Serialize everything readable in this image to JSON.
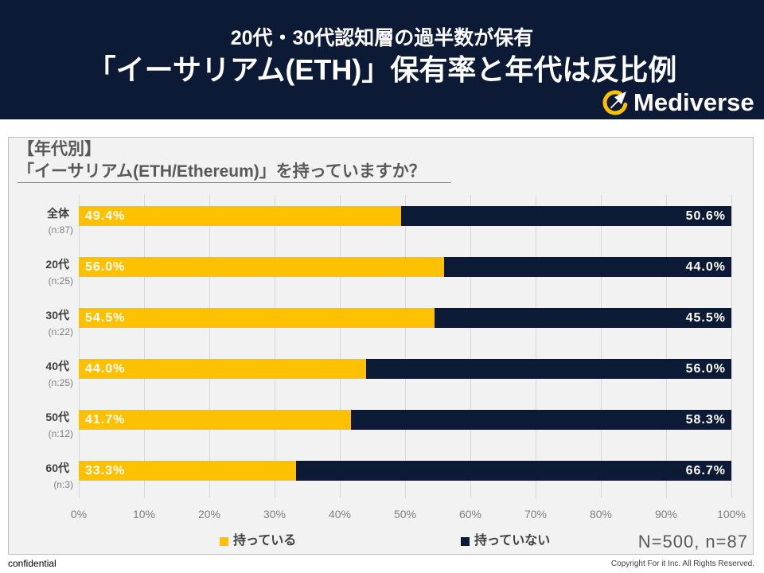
{
  "header": {
    "subtitle": "20代・30代認知層の過半数が保有",
    "title": "「イーサリアム(ETH)」保有率と年代は反比例",
    "background": "#0c1a36"
  },
  "logo": {
    "text": "Mediverse",
    "icon": "crescent-rocket-icon",
    "accent": "#ffc000"
  },
  "panel": {
    "section_label": "【年代別】",
    "sample_note": "N=500, n=87"
  },
  "chart_data": {
    "type": "bar",
    "orientation": "horizontal",
    "stacked": true,
    "title": "「イーサリアム(ETH/Ethereum)」を持っていますか？",
    "categories": [
      "全体",
      "20代",
      "30代",
      "40代",
      "50代",
      "60代"
    ],
    "category_notes": [
      "(n:87)",
      "(n:25)",
      "(n:22)",
      "(n:25)",
      "(n:12)",
      "(n:3)"
    ],
    "series": [
      {
        "name": "持っている",
        "values": [
          49.4,
          56.0,
          54.5,
          44.0,
          41.7,
          33.3
        ],
        "color": "#ffc000"
      },
      {
        "name": "持っていない",
        "values": [
          50.6,
          44.0,
          45.5,
          56.0,
          58.3,
          66.7
        ],
        "color": "#0c1a36"
      }
    ],
    "xlim": [
      0,
      100
    ],
    "xticks": [
      0,
      10,
      20,
      30,
      40,
      50,
      60,
      70,
      80,
      90,
      100
    ],
    "xtick_labels": [
      "0%",
      "10%",
      "20%",
      "30%",
      "40%",
      "50%",
      "60%",
      "70%",
      "80%",
      "90%",
      "100%"
    ],
    "xlabel": "",
    "ylabel": "",
    "grid": true,
    "legend_position": "bottom"
  },
  "footer": {
    "left": "confidential",
    "right": "Copyright For it Inc. All Rights Reserved."
  }
}
